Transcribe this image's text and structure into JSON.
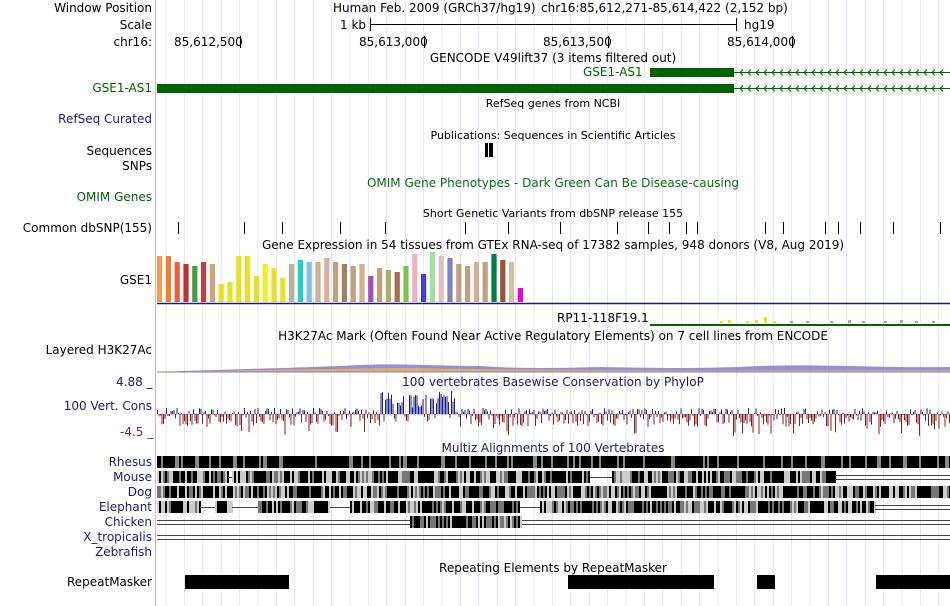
{
  "header": {
    "window_position_label": "Window Position",
    "scale_label": "Scale",
    "chrom_label": "chr16:",
    "assembly": "Human Feb. 2009 (GRCh37/hg19)",
    "region": "chr16:85,612,271-85,614,422 (2,152 bp)",
    "scale_value": "1 kb",
    "scale_db": "hg19",
    "positions": [
      "85,612,500",
      "85,613,000",
      "85,613,500",
      "85,614,000"
    ]
  },
  "tracks": {
    "gencode": {
      "title": "GENCODE V49lift37 (3 items filtered out)",
      "label": "GSE1-AS1",
      "gene": "GSE1-AS1",
      "color": "#006400"
    },
    "refseq": {
      "title": "RefSeq genes from NCBI",
      "label": "RefSeq Curated"
    },
    "publications": {
      "title": "Publications: Sequences in Scientific Articles",
      "label_sequences": "Sequences",
      "label_snps": "SNPs"
    },
    "omim": {
      "title": "OMIM Gene Phenotypes - Dark Green Can Be Disease-causing",
      "label": "OMIM Genes",
      "color": "#0a6e12"
    },
    "dbsnp": {
      "title": "Short Genetic Variants from dbSNP release 155",
      "label": "Common dbSNP(155)"
    },
    "gtex": {
      "title": "Gene Expression in 54 tissues from GTEx RNA-seq of 17382 samples, 948 donors (V8, Aug 2019)",
      "label": "GSE1",
      "second_gene": "RP11-118F19.1"
    },
    "h3k27ac": {
      "title": "H3K27Ac Mark (Often Found Near Active Regulatory Elements) on 7 cell lines from ENCODE",
      "label": "Layered H3K27Ac"
    },
    "conservation": {
      "title": "100 vertebrates Basewise Conservation by PhyloP",
      "label": "100 Vert. Cons",
      "max": "4.88 _",
      "min": "-4.5 _",
      "color_pos": "#1e1e8c",
      "color_neg": "#8c1e1e"
    },
    "multiz": {
      "title": "Multiz Alignments of 100 Vertebrates",
      "species": [
        "Rhesus",
        "Mouse",
        "Dog",
        "Elephant",
        "Chicken",
        "X_tropicalis",
        "Zebrafish"
      ]
    },
    "repeatmasker": {
      "title": "Repeating Elements by RepeatMasker",
      "label": "RepeatMasker"
    }
  },
  "colors": {
    "blue_label": "#1a1a7a",
    "green_label": "#006400",
    "grid": "#e4e4f4",
    "margin_line": "#f0b0b0"
  }
}
